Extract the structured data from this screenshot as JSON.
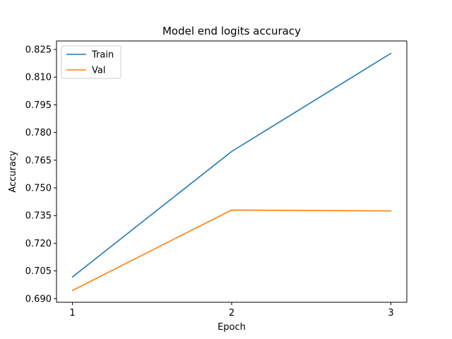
{
  "chart_data": {
    "type": "line",
    "title": "Model end logits accuracy",
    "xlabel": "Epoch",
    "ylabel": "Accuracy",
    "x": [
      1,
      2,
      3
    ],
    "xticks": [
      "1",
      "2",
      "3"
    ],
    "xlim": [
      0.9,
      3.1
    ],
    "yticks": [
      "0.690",
      "0.705",
      "0.720",
      "0.735",
      "0.750",
      "0.765",
      "0.780",
      "0.795",
      "0.810",
      "0.825"
    ],
    "ylim": [
      0.688,
      0.8296
    ],
    "series": [
      {
        "name": "Train",
        "color": "#1f77b4",
        "values": [
          0.7017,
          0.7697,
          0.8229
        ]
      },
      {
        "name": "Val",
        "color": "#ff7f0e",
        "values": [
          0.6944,
          0.738,
          0.7375
        ]
      }
    ],
    "grid": false,
    "legend_position": "top-left"
  }
}
